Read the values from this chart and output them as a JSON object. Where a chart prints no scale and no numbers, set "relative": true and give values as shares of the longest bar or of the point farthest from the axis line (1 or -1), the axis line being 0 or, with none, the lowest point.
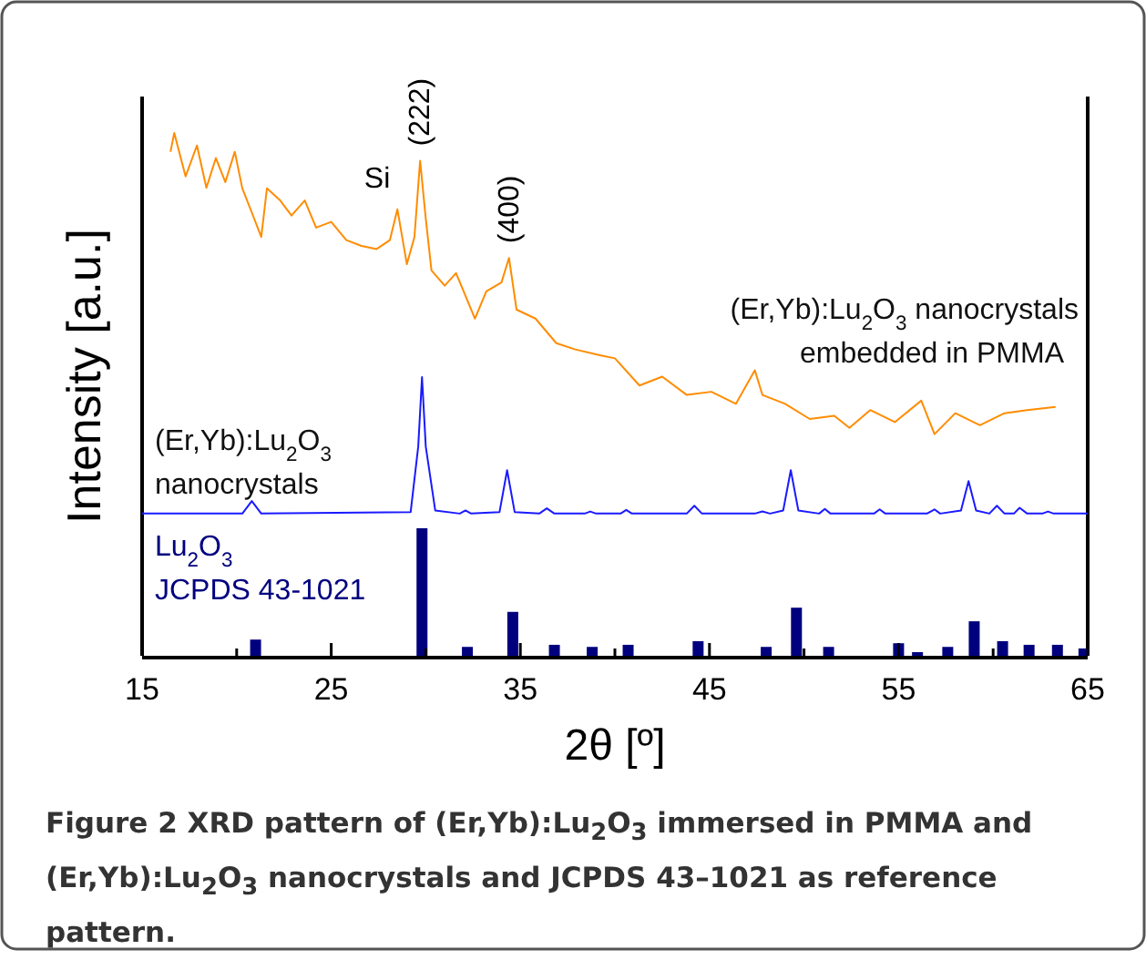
{
  "chart_data": {
    "type": "line",
    "relative": true,
    "xlabel": "2θ [º]",
    "ylabel": "Intensity [a.u.]",
    "xlim": [
      15,
      65
    ],
    "xticks": [
      15,
      {
        "value": 20,
        "label": null
      },
      25,
      {
        "value": 30,
        "label": null
      },
      35,
      {
        "value": 40,
        "label": null
      },
      45,
      {
        "value": 50,
        "label": null
      },
      55,
      {
        "value": 60,
        "label": null
      },
      65
    ],
    "grid": false,
    "line_style": "solid",
    "series": [
      {
        "name": "(Er,Yb):Lu$_{2}$O$_{3}$ nanocrystals\nembedded in PMMA",
        "color": "#ff8c00",
        "x": [
          16.5,
          16.7,
          17.3,
          17.9,
          18.4,
          18.9,
          19.4,
          19.9,
          20.3,
          20.8,
          21.3,
          21.6,
          22.3,
          22.9,
          23.6,
          24.2,
          25.0,
          25.8,
          26.6,
          27.4,
          28.1,
          28.5,
          29.0,
          29.4,
          29.7,
          30.0,
          30.3,
          31.0,
          31.6,
          32.6,
          33.2,
          34.0,
          34.4,
          34.8,
          35.8,
          36.9,
          37.9,
          39.2,
          40.0,
          41.3,
          42.5,
          43.8,
          45.1,
          46.4,
          47.4,
          47.8,
          49.0,
          50.3,
          51.6,
          52.4,
          53.5,
          54.8,
          56.2,
          56.9,
          58.0,
          59.3,
          60.6,
          61.8,
          63.3
        ],
        "values": [
          0.964,
          1.0,
          0.917,
          0.976,
          0.895,
          0.952,
          0.906,
          0.964,
          0.894,
          0.848,
          0.801,
          0.894,
          0.871,
          0.842,
          0.871,
          0.819,
          0.83,
          0.795,
          0.784,
          0.778,
          0.795,
          0.854,
          0.749,
          0.801,
          0.947,
          0.836,
          0.737,
          0.708,
          0.732,
          0.645,
          0.697,
          0.714,
          0.761,
          0.662,
          0.645,
          0.598,
          0.586,
          0.575,
          0.569,
          0.517,
          0.534,
          0.499,
          0.505,
          0.482,
          0.546,
          0.499,
          0.482,
          0.453,
          0.459,
          0.436,
          0.47,
          0.447,
          0.488,
          0.424,
          0.464,
          0.441,
          0.464,
          0.47,
          0.476
        ]
      },
      {
        "name": "(Er,Yb):Lu$_{2}$O$_{3}$\nnanocrystals",
        "color": "#1a1aff",
        "x": [
          15,
          20.3,
          20.8,
          21.3,
          29.2,
          29.6,
          29.8,
          30.0,
          30.5,
          31.8,
          32.1,
          32.4,
          33.9,
          34.3,
          34.7,
          36.0,
          36.4,
          36.8,
          38.4,
          38.7,
          39.0,
          40.3,
          40.6,
          40.9,
          43.8,
          44.2,
          44.6,
          47.4,
          47.8,
          48.2,
          48.9,
          49.3,
          49.7,
          50.8,
          51.1,
          51.4,
          53.7,
          54.0,
          54.3,
          56.5,
          56.9,
          57.2,
          58.3,
          58.7,
          59.1,
          59.8,
          60.2,
          60.6,
          61.1,
          61.4,
          61.8,
          62.6,
          62.9,
          63.2,
          65
        ],
        "values": [
          0.272,
          0.272,
          0.296,
          0.272,
          0.275,
          0.4,
          0.533,
          0.4,
          0.278,
          0.272,
          0.278,
          0.272,
          0.275,
          0.355,
          0.275,
          0.272,
          0.282,
          0.272,
          0.272,
          0.276,
          0.272,
          0.272,
          0.279,
          0.272,
          0.272,
          0.287,
          0.272,
          0.272,
          0.276,
          0.272,
          0.278,
          0.355,
          0.278,
          0.272,
          0.281,
          0.272,
          0.272,
          0.28,
          0.272,
          0.272,
          0.28,
          0.272,
          0.278,
          0.334,
          0.278,
          0.272,
          0.287,
          0.272,
          0.272,
          0.283,
          0.272,
          0.272,
          0.276,
          0.272,
          0.272
        ]
      },
      {
        "name": "Lu$_{2}$O$_{3}$\nJCPDS 43-1021",
        "type": "bar",
        "color": "#00007f",
        "x": [
          21.0,
          29.8,
          32.2,
          34.6,
          36.8,
          38.8,
          40.7,
          44.4,
          48.0,
          49.6,
          51.3,
          55.0,
          56.0,
          57.6,
          59.0,
          60.5,
          61.9,
          63.4,
          64.8
        ],
        "values": [
          0.031,
          0.244,
          0.017,
          0.084,
          0.021,
          0.017,
          0.021,
          0.028,
          0.017,
          0.092,
          0.017,
          0.024,
          0.007,
          0.017,
          0.066,
          0.028,
          0.021,
          0.021,
          0.014
        ]
      }
    ],
    "annotations": [
      {
        "text": "Si",
        "x": 28.5,
        "y": 0.854
      },
      {
        "text": "(222)",
        "x": 29.7,
        "y": 0.947
      },
      {
        "text": "(400)",
        "x": 34.4,
        "y": 0.761
      },
      "Figure 2 XRD pattern of (Er,Yb):Lu$_{2}$O$_{3}$ immersed in PMMA and (Er,Yb):Lu$_{2}$O$_{3}$ nanocrystals and JCPDS 43–1021 as reference pattern."
    ]
  }
}
